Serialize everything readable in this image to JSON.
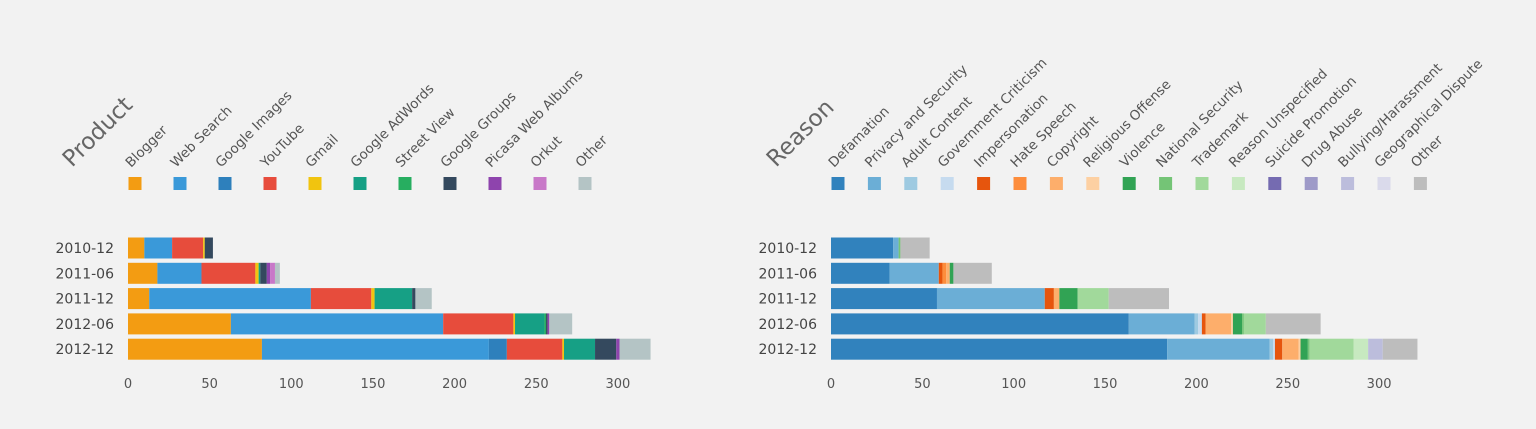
{
  "chart_data": [
    {
      "type": "bar",
      "orientation": "horizontal",
      "stacked": true,
      "title": "Product",
      "categories": [
        "2010-12",
        "2011-06",
        "2011-12",
        "2012-06",
        "2012-12"
      ],
      "xlim": [
        0,
        330
      ],
      "xticks": [
        0,
        50,
        100,
        150,
        200,
        250,
        300
      ],
      "series": [
        {
          "name": "Blogger",
          "color": "#f39c12",
          "values": [
            10,
            18,
            13,
            63,
            82
          ]
        },
        {
          "name": "Web Search",
          "color": "#3a99d9",
          "values": [
            17,
            27,
            99,
            130,
            139
          ]
        },
        {
          "name": "Google Images",
          "color": "#2e80bc",
          "values": [
            0,
            0,
            0,
            0,
            11
          ]
        },
        {
          "name": "YouTube",
          "color": "#e74c3c",
          "values": [
            19,
            33,
            37,
            43,
            34
          ]
        },
        {
          "name": "Gmail",
          "color": "#f1c40f",
          "values": [
            1,
            2,
            2,
            1,
            1
          ]
        },
        {
          "name": "Google AdWords",
          "color": "#16a085",
          "values": [
            0,
            1,
            23,
            18,
            19
          ]
        },
        {
          "name": "Street View",
          "color": "#27ae60",
          "values": [
            0,
            0,
            0,
            1,
            0
          ]
        },
        {
          "name": "Google Groups",
          "color": "#34495e",
          "values": [
            5,
            4,
            2,
            1,
            13
          ]
        },
        {
          "name": "Picasa Web Albums",
          "color": "#8e44ad",
          "values": [
            0,
            2,
            0,
            1,
            2
          ]
        },
        {
          "name": "Orkut",
          "color": "#c878c8",
          "values": [
            0,
            3,
            0,
            0,
            0
          ]
        },
        {
          "name": "Other",
          "color": "#b4c4c5",
          "values": [
            0,
            3,
            10,
            14,
            19
          ]
        }
      ]
    },
    {
      "type": "bar",
      "orientation": "horizontal",
      "stacked": true,
      "title": "Reason",
      "categories": [
        "2010-12",
        "2011-06",
        "2011-12",
        "2012-06",
        "2012-12"
      ],
      "xlim": [
        0,
        330
      ],
      "xticks": [
        0,
        50,
        100,
        150,
        200,
        250,
        300
      ],
      "series": [
        {
          "name": "Defamation",
          "color": "#3182bd",
          "values": [
            34,
            32,
            58,
            163,
            184
          ]
        },
        {
          "name": "Privacy and Security",
          "color": "#6baed6",
          "values": [
            3,
            27,
            59,
            36,
            56
          ]
        },
        {
          "name": "Adult Content",
          "color": "#9ecae1",
          "values": [
            0,
            0,
            0,
            2,
            2
          ]
        },
        {
          "name": "Government Criticism",
          "color": "#c6dbef",
          "values": [
            0,
            0,
            0,
            2,
            1
          ]
        },
        {
          "name": "Impersonation",
          "color": "#e6550d",
          "values": [
            0,
            2,
            5,
            2,
            4
          ]
        },
        {
          "name": "Hate Speech",
          "color": "#fd8d3c",
          "values": [
            0,
            2,
            0,
            0,
            0
          ]
        },
        {
          "name": "Copyright",
          "color": "#fdae6b",
          "values": [
            0,
            2,
            3,
            14,
            9
          ]
        },
        {
          "name": "Religious Offense",
          "color": "#fdd0a2",
          "values": [
            0,
            0,
            0,
            1,
            1
          ]
        },
        {
          "name": "Violence",
          "color": "#31a354",
          "values": [
            0,
            2,
            10,
            5,
            4
          ]
        },
        {
          "name": "National Security",
          "color": "#74c476",
          "values": [
            1,
            0,
            0,
            1,
            1
          ]
        },
        {
          "name": "Trademark",
          "color": "#a1d99b",
          "values": [
            0,
            0,
            17,
            12,
            24
          ]
        },
        {
          "name": "Reason Unspecified",
          "color": "#c7e9c0",
          "values": [
            0,
            0,
            0,
            0,
            8
          ]
        },
        {
          "name": "Suicide Promotion",
          "color": "#756bb1",
          "values": [
            0,
            0,
            0,
            0,
            0
          ]
        },
        {
          "name": "Drug Abuse",
          "color": "#9e9ac8",
          "values": [
            0,
            0,
            0,
            0,
            0
          ]
        },
        {
          "name": "Bullying/Harassment",
          "color": "#bcbddc",
          "values": [
            0,
            0,
            0,
            0,
            8
          ]
        },
        {
          "name": "Geographical Dispute",
          "color": "#dadaeb",
          "values": [
            0,
            0,
            0,
            0,
            0
          ]
        },
        {
          "name": "Other",
          "color": "#bdbdbd",
          "values": [
            16,
            21,
            33,
            30,
            19
          ]
        }
      ]
    }
  ]
}
